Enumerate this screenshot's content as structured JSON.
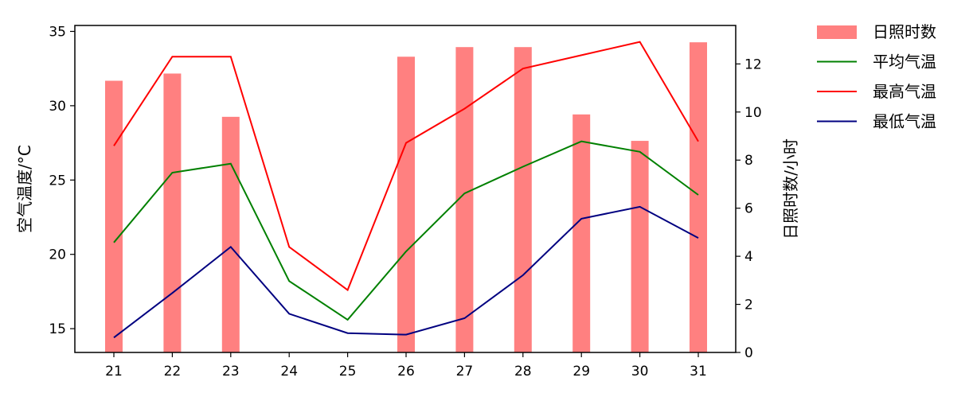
{
  "chart_data": {
    "type": "bar+line",
    "x": [
      "21",
      "22",
      "23",
      "24",
      "25",
      "26",
      "27",
      "28",
      "29",
      "30",
      "31"
    ],
    "ylabel_left": "空气温度/°C",
    "ylabel_right": "日照时数/小时",
    "ylim_left": [
      13.4,
      35.4
    ],
    "ylim_right": [
      0,
      13.6
    ],
    "yticks_left": [
      15,
      20,
      25,
      30,
      35
    ],
    "yticks_right": [
      0,
      2,
      4,
      6,
      8,
      10,
      12
    ],
    "bars": {
      "name": "日照时数",
      "axis": "right",
      "color": "#ff8080",
      "values": [
        11.3,
        11.6,
        9.8,
        0,
        0,
        12.3,
        12.7,
        12.7,
        9.9,
        8.8,
        12.9
      ]
    },
    "series": [
      {
        "name": "平均气温",
        "axis": "left",
        "color": "#008000",
        "values": [
          20.8,
          25.5,
          26.1,
          18.2,
          15.6,
          20.2,
          24.1,
          25.9,
          27.6,
          26.9,
          24.0
        ]
      },
      {
        "name": "最高气温",
        "axis": "left",
        "color": "#ff0000",
        "values": [
          27.3,
          33.3,
          33.3,
          20.5,
          17.6,
          27.5,
          29.8,
          32.5,
          33.4,
          34.3,
          27.6
        ]
      },
      {
        "name": "最低气温",
        "axis": "left",
        "color": "#000080",
        "values": [
          14.4,
          17.4,
          20.5,
          16.0,
          14.7,
          14.6,
          15.7,
          18.6,
          22.4,
          23.2,
          21.1
        ]
      }
    ],
    "legend_position": "outside-top-right",
    "grid": false
  }
}
